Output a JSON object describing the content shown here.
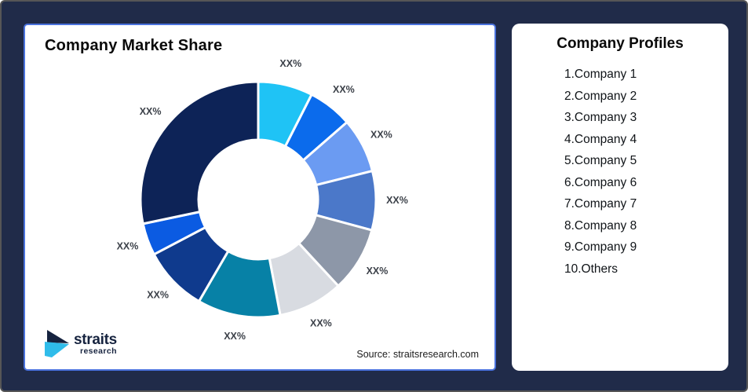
{
  "page": {
    "background_color": "#202B49",
    "card_border_color": "#4A72DD"
  },
  "chart_card": {
    "title": "Company Market Share",
    "source": "Source: straitsresearch.com",
    "logo": {
      "name": "straits",
      "sub": "research",
      "mark_navy": "#16233F",
      "mark_cyan": "#2FBCEA"
    }
  },
  "chart_data": {
    "type": "pie",
    "subtype": "donut",
    "title": "Company Market Share",
    "legend_position": "none",
    "value_labels_shown_as_placeholder": "XX%",
    "segments": [
      {
        "name": "Company 1",
        "label": "XX%",
        "value_pct": 7.5,
        "color": "#1FC3F5"
      },
      {
        "name": "Company 2",
        "label": "XX%",
        "value_pct": 6.1,
        "color": "#0B6BEC"
      },
      {
        "name": "Company 3",
        "label": "XX%",
        "value_pct": 7.5,
        "color": "#6B9BF2"
      },
      {
        "name": "Company 4",
        "label": "XX%",
        "value_pct": 8.1,
        "color": "#4B78C9"
      },
      {
        "name": "Company 5",
        "label": "XX%",
        "value_pct": 8.9,
        "color": "#8D97A8"
      },
      {
        "name": "Company 6",
        "label": "XX%",
        "value_pct": 8.9,
        "color": "#D8DBE1"
      },
      {
        "name": "Company 7",
        "label": "XX%",
        "value_pct": 11.4,
        "color": "#0781A6"
      },
      {
        "name": "Company 8",
        "label": "XX%",
        "value_pct": 8.9,
        "color": "#0F3A8D"
      },
      {
        "name": "Company 9",
        "label": "XX%",
        "value_pct": 4.4,
        "color": "#0B5BE2"
      },
      {
        "name": "Others",
        "label": "XX%",
        "value_pct": 28.3,
        "color": "#0D2357"
      }
    ]
  },
  "profiles_card": {
    "title": "Company Profiles",
    "items": [
      "1.Company 1",
      "2.Company 2",
      "3.Company 3",
      "4.Company 4",
      "5.Company 5",
      "6.Company 6",
      "7.Company 7",
      "8.Company 8",
      "9.Company 9",
      "10.Others"
    ]
  }
}
